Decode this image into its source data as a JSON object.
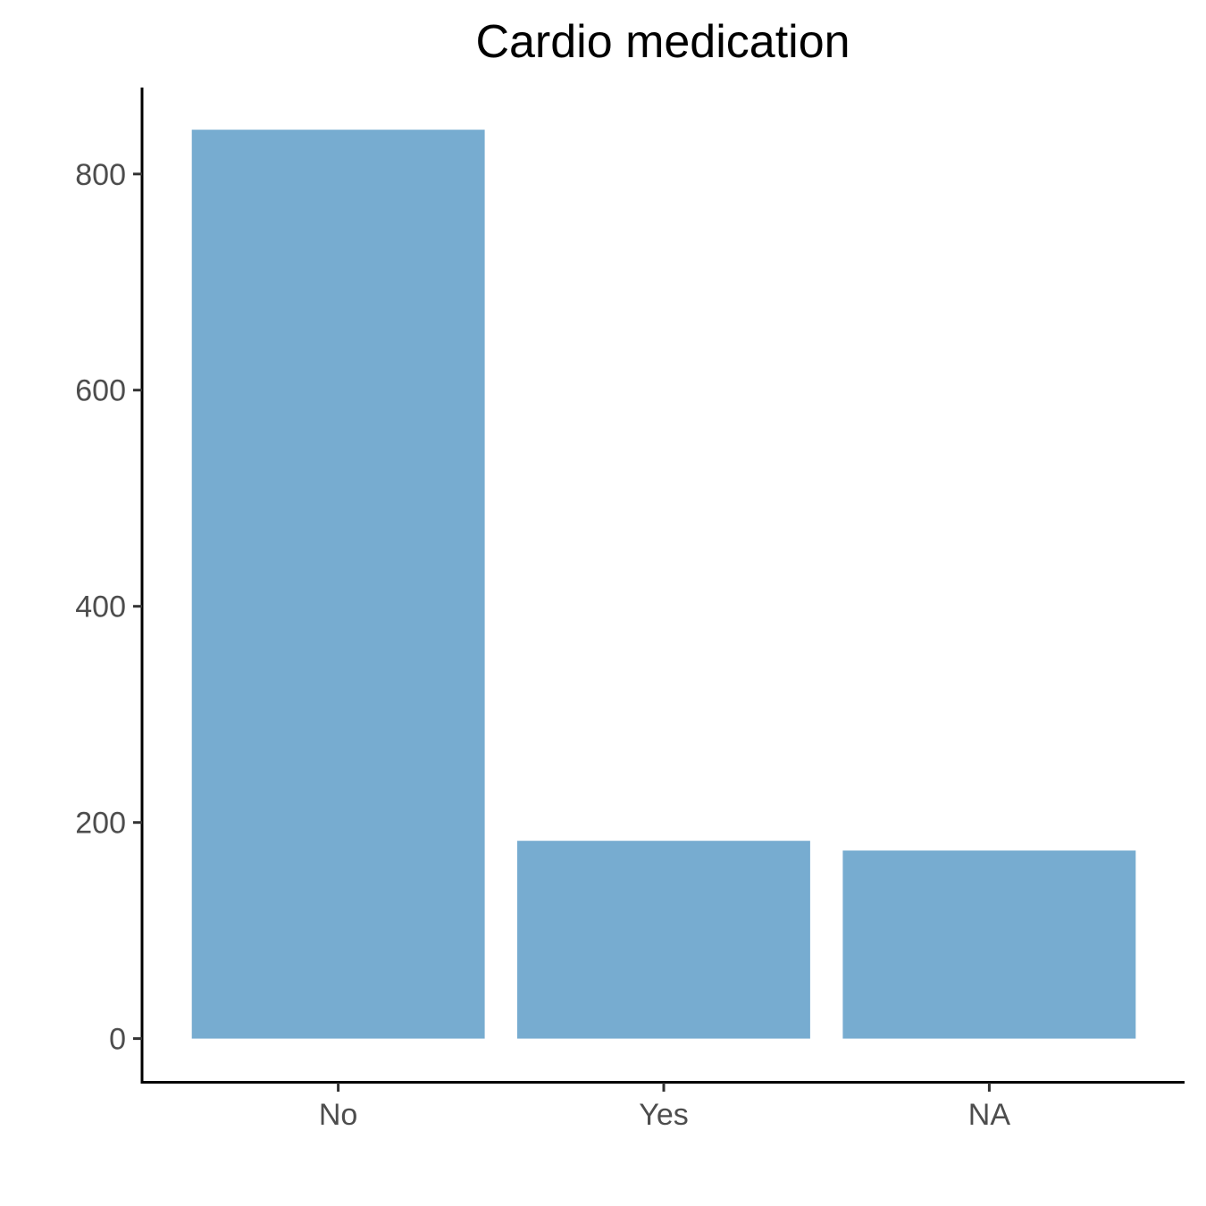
{
  "chart_data": {
    "type": "bar",
    "title": "Cardio medication",
    "xlabel": "",
    "ylabel": "",
    "categories": [
      "No",
      "Yes",
      "NA"
    ],
    "values": [
      841,
      183,
      174
    ],
    "ylim": [
      -40,
      880
    ],
    "yticks": [
      0,
      200,
      400,
      600,
      800
    ],
    "grid": false,
    "legend": "none",
    "colors": {
      "bar": "#77acd0",
      "axis": "#000000",
      "tick_label": "#4d4d4d",
      "title": "#000000"
    }
  }
}
